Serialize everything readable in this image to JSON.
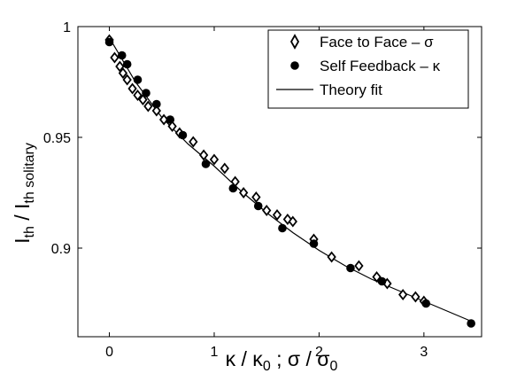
{
  "chart_data": {
    "type": "scatter",
    "xlim": [
      -0.3,
      3.55
    ],
    "ylim": [
      0.86,
      1.0
    ],
    "x_ticks": [
      0,
      1,
      2,
      3
    ],
    "y_ticks": [
      0.9,
      0.95,
      1
    ],
    "x_tick_labels": [
      "0",
      "1",
      "2",
      "3"
    ],
    "y_tick_labels": [
      "0.9",
      "0.95",
      "1"
    ],
    "xlabel": {
      "part1": "κ / κ",
      "sub1": "0",
      "part2": " ; σ / σ",
      "sub2": "0"
    },
    "ylabel": {
      "part1": "I",
      "sub1": "th",
      "part2": " / I",
      "sub2": "th solitary"
    },
    "grid": false,
    "legend_position": "top-right",
    "series": [
      {
        "name": "Face to Face – σ",
        "marker": "diamond-open",
        "x": [
          0.0,
          0.05,
          0.1,
          0.13,
          0.17,
          0.22,
          0.27,
          0.32,
          0.37,
          0.45,
          0.52,
          0.6,
          0.67,
          0.8,
          0.9,
          1.0,
          1.1,
          1.2,
          1.28,
          1.4,
          1.5,
          1.6,
          1.7,
          1.75,
          1.95,
          2.12,
          2.38,
          2.55,
          2.65,
          2.8,
          2.92,
          3.0
        ],
        "y": [
          0.994,
          0.986,
          0.982,
          0.979,
          0.976,
          0.972,
          0.969,
          0.967,
          0.964,
          0.962,
          0.958,
          0.955,
          0.952,
          0.948,
          0.942,
          0.94,
          0.936,
          0.93,
          0.925,
          0.923,
          0.917,
          0.915,
          0.913,
          0.912,
          0.904,
          0.896,
          0.892,
          0.887,
          0.884,
          0.879,
          0.878,
          0.876
        ]
      },
      {
        "name": "Self Feedback – κ",
        "marker": "circle-filled",
        "x": [
          0.0,
          0.12,
          0.17,
          0.27,
          0.35,
          0.45,
          0.58,
          0.7,
          0.92,
          1.18,
          1.42,
          1.65,
          1.95,
          2.3,
          2.6,
          3.02,
          3.45
        ],
        "y": [
          0.993,
          0.987,
          0.983,
          0.976,
          0.97,
          0.965,
          0.958,
          0.951,
          0.938,
          0.927,
          0.919,
          0.909,
          0.902,
          0.891,
          0.885,
          0.875,
          0.866
        ]
      },
      {
        "name": "Theory fit",
        "marker": "line",
        "x": [
          0.0,
          0.25,
          0.5,
          0.75,
          1.0,
          1.25,
          1.5,
          1.75,
          2.0,
          2.25,
          2.5,
          2.75,
          3.0,
          3.25,
          3.45
        ],
        "y": [
          0.995,
          0.975,
          0.959,
          0.947,
          0.937,
          0.926,
          0.916,
          0.907,
          0.899,
          0.892,
          0.886,
          0.881,
          0.876,
          0.871,
          0.867
        ]
      }
    ]
  }
}
